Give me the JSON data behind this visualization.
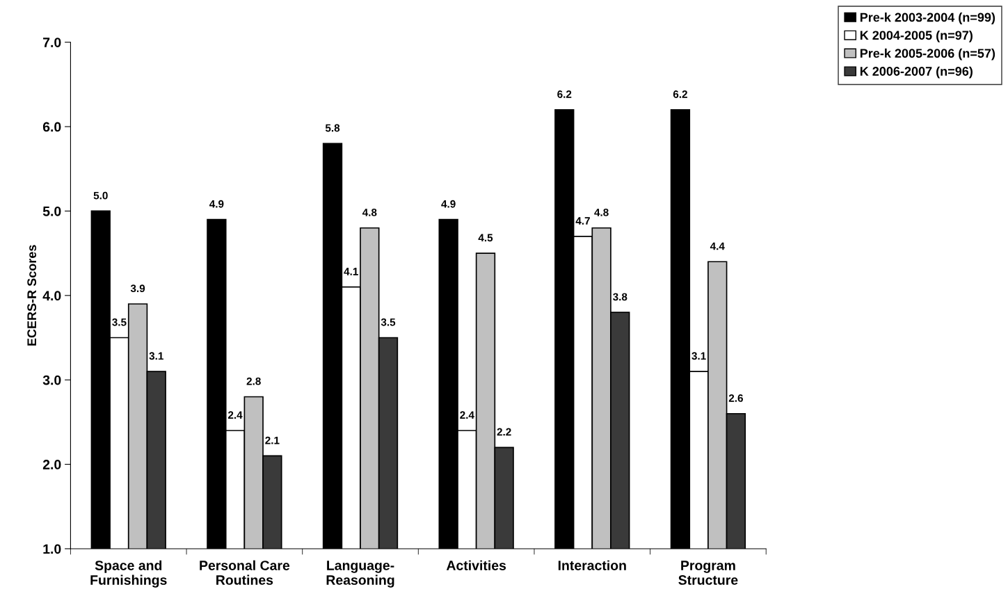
{
  "chart_data": {
    "type": "bar",
    "ylabel": "ECERS-R Scores",
    "categories": [
      "Space and\nFurnishings",
      "Personal Care\nRoutines",
      "Language-\nReasoning",
      "Activities",
      "Interaction",
      "Program\nStructure"
    ],
    "series": [
      {
        "name": "Pre-k 2003-2004 (n=99)",
        "color": "#000000",
        "values": [
          5.0,
          4.9,
          5.8,
          4.9,
          6.2,
          6.2
        ],
        "value_labels": [
          "5.0",
          "4.9",
          "5.8",
          "4.9",
          "6.2",
          "6.2"
        ]
      },
      {
        "name": "K 2004-2005 (n=97)",
        "color": "#ffffff",
        "values": [
          3.5,
          2.4,
          4.1,
          2.4,
          4.7,
          3.1
        ],
        "value_labels": [
          "3.5",
          "2.4",
          "4.1",
          "2.4",
          "4.7",
          "3.1"
        ]
      },
      {
        "name": "Pre-k 2005-2006 (n=57)",
        "color": "#c0c0c0",
        "values": [
          3.9,
          2.8,
          4.8,
          4.5,
          4.8,
          4.4
        ],
        "value_labels": [
          "3.9",
          "2.8",
          "4.8",
          "4.5",
          "4.8",
          "4.4"
        ]
      },
      {
        "name": "K 2006-2007 (n=96)",
        "color": "#3a3a3a",
        "values": [
          3.1,
          2.1,
          3.5,
          2.2,
          3.8,
          2.6
        ],
        "value_labels": [
          "3.1",
          "2.1",
          "3.5",
          "2.2",
          "3.8",
          "2.6"
        ]
      }
    ],
    "ylim": [
      1.0,
      7.0
    ],
    "yticks": [
      {
        "value": 1,
        "label": "1.0"
      },
      {
        "value": 2,
        "label": "2.0"
      },
      {
        "value": 3,
        "label": "3.0"
      },
      {
        "value": 4,
        "label": "4.0"
      },
      {
        "value": 5,
        "label": "5.0"
      },
      {
        "value": 6,
        "label": "6.0"
      },
      {
        "value": 7,
        "label": "7.0"
      }
    ],
    "grid": false,
    "legend": "top right"
  }
}
